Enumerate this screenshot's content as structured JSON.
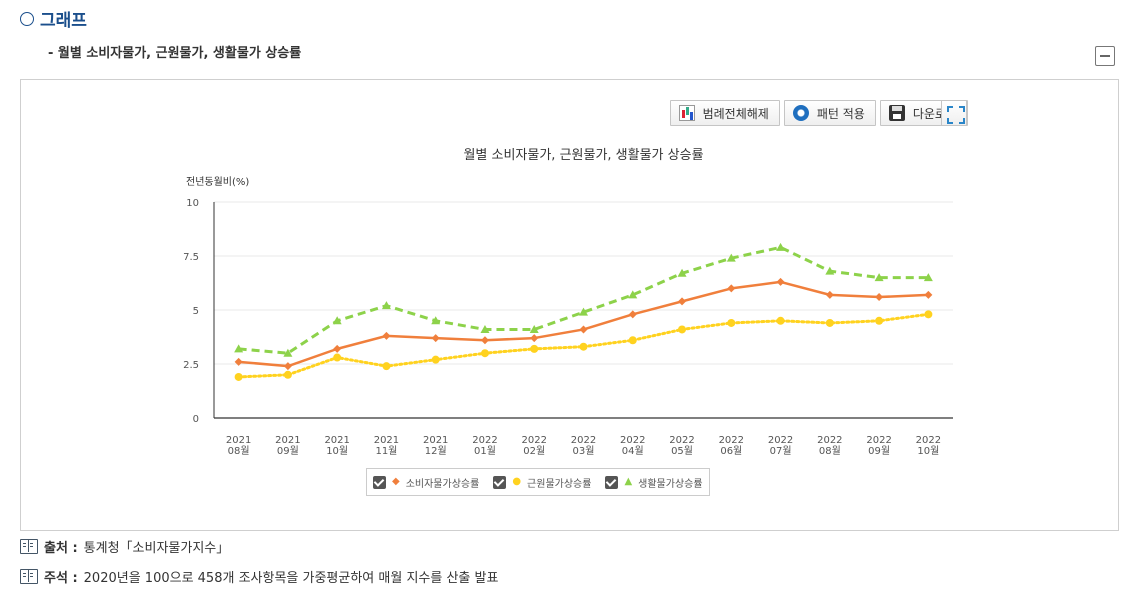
{
  "section": {
    "title": "그래프"
  },
  "subtitle": "- 월별 소비자물가, 근원물가, 생활물가 상승률",
  "toolbar": {
    "legend_toggle_label": "범례전체해제",
    "pattern_label": "패턴 적용",
    "download_label": "다운로드"
  },
  "chart_data": {
    "type": "line",
    "title": "월별 소비자물가, 근원물가, 생활물가 상승률",
    "ylabel": "전년동월비(%)",
    "xlabel": "",
    "ylim": [
      0,
      10
    ],
    "yticks": [
      "0",
      "2.5",
      "5",
      "7.5",
      "10"
    ],
    "ytick_values": [
      0,
      2.5,
      5,
      7.5,
      10
    ],
    "categories": [
      [
        "2021",
        "08월"
      ],
      [
        "2021",
        "09월"
      ],
      [
        "2021",
        "10월"
      ],
      [
        "2021",
        "11월"
      ],
      [
        "2021",
        "12월"
      ],
      [
        "2022",
        "01월"
      ],
      [
        "2022",
        "02월"
      ],
      [
        "2022",
        "03월"
      ],
      [
        "2022",
        "04월"
      ],
      [
        "2022",
        "05월"
      ],
      [
        "2022",
        "06월"
      ],
      [
        "2022",
        "07월"
      ],
      [
        "2022",
        "08월"
      ],
      [
        "2022",
        "09월"
      ],
      [
        "2022",
        "10월"
      ]
    ],
    "grid": true,
    "legend_position": "bottom",
    "series": [
      {
        "name": "소비자물가상승률",
        "color": "#f07f3c",
        "style": "solid",
        "marker": "diamond",
        "values": [
          2.6,
          2.4,
          3.2,
          3.8,
          3.7,
          3.6,
          3.7,
          4.1,
          4.8,
          5.4,
          6.0,
          6.3,
          5.7,
          5.6,
          5.7
        ]
      },
      {
        "name": "근원물가상승률",
        "color": "#ffd21f",
        "style": "dotted",
        "marker": "circle",
        "values": [
          1.9,
          2.0,
          2.8,
          2.4,
          2.7,
          3.0,
          3.2,
          3.3,
          3.6,
          4.1,
          4.4,
          4.5,
          4.4,
          4.5,
          4.8
        ]
      },
      {
        "name": "생활물가상승률",
        "color": "#8dd24a",
        "style": "dashed",
        "marker": "triangle",
        "values": [
          3.2,
          3.0,
          4.5,
          5.2,
          4.5,
          4.1,
          4.1,
          4.9,
          5.7,
          6.7,
          7.4,
          7.9,
          6.8,
          6.5,
          6.5
        ]
      }
    ]
  },
  "legend": {
    "items": [
      {
        "label": "소비자물가상승률",
        "marker": "◆",
        "color": "#f07f3c"
      },
      {
        "label": "근원물가상승률",
        "marker": "●",
        "color": "#ffd21f"
      },
      {
        "label": "생활물가상승률",
        "marker": "▲",
        "color": "#8dd24a"
      }
    ]
  },
  "notes": {
    "source_label": "출처 :",
    "source_text": "통계청「소비자물가지수」",
    "remark_label": "주석 :",
    "remark_text": "2020년을 100으로 458개 조사항목을 가중평균하여 매월 지수를 산출 발표"
  }
}
